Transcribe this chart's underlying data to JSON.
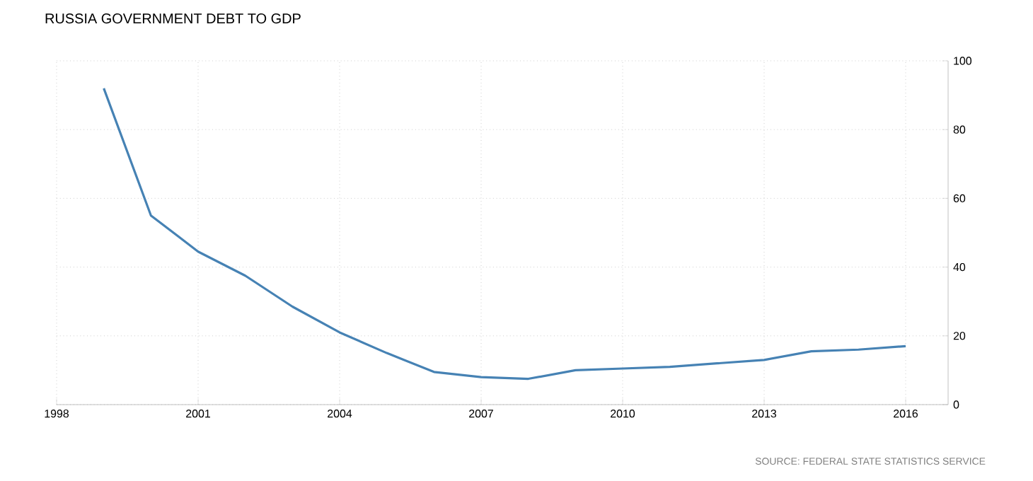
{
  "chart_data": {
    "type": "line",
    "title": "RUSSIA GOVERNMENT DEBT TO GDP",
    "annotations": [
      "SOURCE: FEDERAL STATE STATISTICS SERVICE"
    ],
    "x": [
      1999,
      2000,
      2001,
      2002,
      2003,
      2004,
      2005,
      2006,
      2007,
      2008,
      2009,
      2010,
      2011,
      2012,
      2013,
      2014,
      2015,
      2016
    ],
    "series": [
      {
        "color": "#4682b4",
        "values": [
          92,
          55,
          44.5,
          37.5,
          28.5,
          21,
          15,
          9.5,
          8,
          7.5,
          10,
          10.5,
          11,
          12,
          13,
          15.5,
          16,
          17
        ]
      }
    ],
    "xlim": [
      1998,
      2016.9
    ],
    "ylim": [
      0,
      100
    ],
    "xticks": [
      1998,
      2001,
      2004,
      2007,
      2010,
      2013,
      2016
    ],
    "yticks": [
      0,
      20,
      40,
      60,
      80,
      100
    ],
    "grid": true
  }
}
